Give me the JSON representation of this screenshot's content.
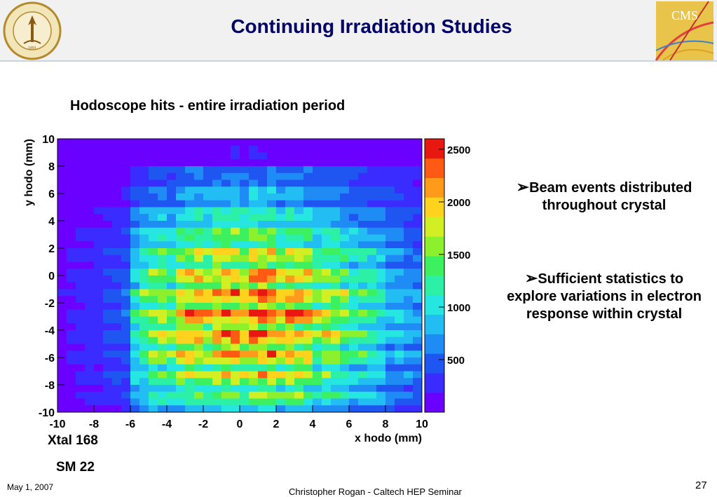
{
  "header": {
    "title": "Continuing Irradiation Studies",
    "logo_left_text": "CALIFORNIA INSTITUTE OF TECHNOLOGY 1891",
    "logo_right_text": "CMS"
  },
  "subtitle": "Hodoscope hits - entire irradiation period",
  "chart_data": {
    "type": "heatmap",
    "title": "",
    "xlabel": "x hodo (mm)",
    "ylabel": "y hodo (mm)",
    "xlim": [
      -10,
      10
    ],
    "ylim": [
      -10,
      10
    ],
    "x_ticks": [
      "-10",
      "-8",
      "-6",
      "-4",
      "-2",
      "0",
      "2",
      "4",
      "6",
      "8",
      "10"
    ],
    "y_ticks": [
      "10",
      "8",
      "6",
      "4",
      "2",
      "0",
      "-2",
      "-4",
      "-6",
      "-8",
      "-10"
    ],
    "bins": 40,
    "zlim": [
      0,
      2600
    ],
    "z_ticks": [
      "2500",
      "2000",
      "1500",
      "1000",
      "500"
    ],
    "z_tick_values": [
      2500,
      2000,
      1500,
      1000,
      500
    ],
    "colorscale": [
      "#6a00ff",
      "#3a2cff",
      "#1f55f0",
      "#1f8cf6",
      "#22bdf2",
      "#25e6e0",
      "#2bf0a6",
      "#3df060",
      "#8cf02c",
      "#d2ef24",
      "#ffd21e",
      "#ff9a1a",
      "#ff5a14",
      "#e8170f"
    ],
    "peak_value": 2300,
    "peak_center": [
      0.5,
      -3
    ],
    "pattern": "counts rise toward centre of crystal; low-count bands along left edge (x < -6) and top edge (y > 8); alternating bright/dark horizontal stripes from hodoscope fibre structure"
  },
  "bullets": [
    {
      "arrow": "➢",
      "text": "Beam events distributed throughout crystal"
    },
    {
      "arrow": "➢",
      "text": "Sufficient statistics to explore variations in electron response within crystal"
    }
  ],
  "labels": {
    "xtal": "Xtal 168",
    "sm": "SM 22"
  },
  "footer": {
    "date": "May 1, 2007",
    "center": "Christopher Rogan - Caltech HEP Seminar",
    "page": "27"
  }
}
